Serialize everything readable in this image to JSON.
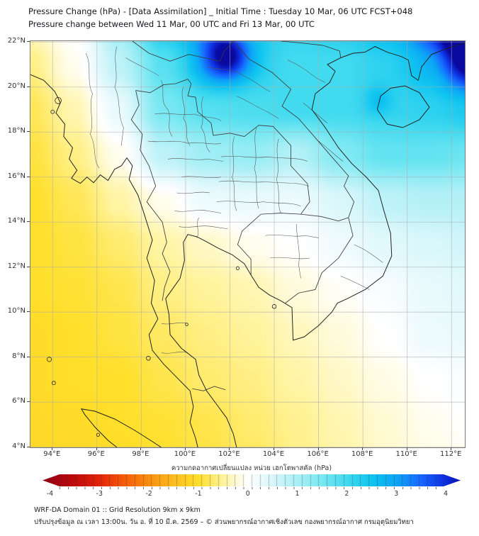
{
  "header": {
    "title_line1": "Pressure Change (hPa) - [Data Assimilation] _ Initial Time : Tuesday 10 Mar, 06 UTC FCST+048",
    "title_line2": "Pressure change between Wed 11 Mar, 00 UTC and Fri 13 Mar, 00 UTC"
  },
  "footer": {
    "line1": "WRF-DA Domain 01 :: Grid Resolution 9km x 9km",
    "line2": "ปรับปรุงข้อมูล ณ เวลา 13:00น. วัน อ. ที่ 10 มี.ค. 2569 – © ส่วนพยากรณ์อากาศเชิงตัวเลข กองพยากรณ์อากาศ กรมอุตุนิยมวิทยา"
  },
  "colorbar": {
    "title": "ความกดอากาศเปลี่ยนแปลง หน่วย เฮกโตพาสคัล (hPa)",
    "ticks": [
      -4,
      -3,
      -2,
      -1,
      0,
      1,
      2,
      3,
      4
    ],
    "range": [
      -4.15,
      4.3
    ]
  },
  "axes": {
    "x_ticks": [
      {
        "lon": 94,
        "label": "94°E"
      },
      {
        "lon": 96,
        "label": "96°E"
      },
      {
        "lon": 98,
        "label": "98°E"
      },
      {
        "lon": 100,
        "label": "100°E"
      },
      {
        "lon": 102,
        "label": "102°E"
      },
      {
        "lon": 104,
        "label": "104°E"
      },
      {
        "lon": 106,
        "label": "106°E"
      },
      {
        "lon": 108,
        "label": "108°E"
      },
      {
        "lon": 110,
        "label": "110°E"
      },
      {
        "lon": 112,
        "label": "112°E"
      }
    ],
    "y_ticks": [
      {
        "lat": 4,
        "label": "4°N"
      },
      {
        "lat": 6,
        "label": "6°N"
      },
      {
        "lat": 8,
        "label": "8°N"
      },
      {
        "lat": 10,
        "label": "10°N"
      },
      {
        "lat": 12,
        "label": "12°N"
      },
      {
        "lat": 14,
        "label": "14°N"
      },
      {
        "lat": 16,
        "label": "16°N"
      },
      {
        "lat": 18,
        "label": "18°N"
      },
      {
        "lat": 20,
        "label": "20°N"
      },
      {
        "lat": 22,
        "label": "22°N"
      }
    ]
  },
  "chart_data": {
    "type": "heatmap",
    "title": "Pressure Change (hPa) - [Data Assimilation] _ Initial Time : Tuesday 10 Mar, 06 UTC FCST+048",
    "subtitle": "Pressure change between Wed 11 Mar, 00 UTC and Fri 13 Mar, 00 UTC",
    "units": "hPa",
    "colorbar_title": "ความกดอากาศเปลี่ยนแปลง หน่วย เฮกโตพาสคัล (hPa)",
    "colorbar_ticks": [
      -4,
      -3,
      -2,
      -1,
      0,
      1,
      2,
      3,
      4
    ],
    "colorbar_range": [
      -4.15,
      4.3
    ],
    "extent": {
      "lon_min": 93.0,
      "lon_max": 112.6,
      "lat_min": 3.99,
      "lat_max": 22.04
    },
    "grid": {
      "lons": [
        93,
        95,
        97,
        99,
        101,
        103,
        105,
        107,
        109,
        111,
        113
      ],
      "lats": [
        23,
        21,
        19,
        17,
        15,
        13,
        11,
        9,
        7,
        5,
        3
      ],
      "values": [
        [
          -0.2,
          0.1,
          1.2,
          2.6,
          3.2,
          2.4,
          2.2,
          2.4,
          2.8,
          3.6,
          4.4
        ],
        [
          -0.6,
          -0.1,
          0.8,
          1.8,
          2.6,
          2.2,
          2.0,
          2.0,
          2.2,
          2.6,
          4.2
        ],
        [
          -0.8,
          -0.4,
          0.3,
          1.5,
          1.8,
          1.9,
          2.0,
          2.0,
          2.1,
          2.2,
          2.4
        ],
        [
          -0.9,
          -0.6,
          -0.1,
          0.8,
          1.1,
          1.2,
          0.9,
          1.4,
          1.7,
          1.7,
          1.6
        ],
        [
          -1.0,
          -0.8,
          -0.45,
          -0.1,
          0.25,
          0.3,
          0.25,
          0.5,
          0.8,
          0.9,
          0.9
        ],
        [
          -1.0,
          -0.9,
          -0.7,
          -0.45,
          -0.3,
          -0.1,
          0.0,
          0.2,
          0.4,
          0.5,
          0.6
        ],
        [
          -1.0,
          -0.95,
          -0.85,
          -0.6,
          -0.5,
          -0.4,
          -0.2,
          -0.05,
          0.1,
          0.3,
          0.4
        ],
        [
          -1.05,
          -1.0,
          -0.9,
          -0.75,
          -0.6,
          -0.5,
          -0.35,
          -0.2,
          0.0,
          0.25,
          0.3
        ],
        [
          -1.05,
          -1.0,
          -1.0,
          -0.85,
          -0.7,
          -0.6,
          -0.45,
          -0.3,
          -0.15,
          0.0,
          0.1
        ],
        [
          -1.1,
          -1.05,
          -1.0,
          -0.95,
          -0.85,
          -0.7,
          -0.55,
          -0.4,
          -0.25,
          -0.1,
          0.0
        ],
        [
          -1.1,
          -1.1,
          -1.05,
          -1.0,
          -0.9,
          -0.8,
          -0.6,
          -0.45,
          -0.3,
          -0.2,
          -0.1
        ]
      ]
    },
    "centers": [
      {
        "lon": 101.9,
        "lat": 21.35,
        "amp": 2.2,
        "sigma": 0.75
      },
      {
        "lon": 112.6,
        "lat": 22.3,
        "amp": 1.6,
        "sigma": 1.1
      },
      {
        "lon": 108.7,
        "lat": 19.4,
        "amp": 0.5,
        "sigma": 0.45
      }
    ],
    "colormap": [
      [
        -4.4,
        "#67000d"
      ],
      [
        -4.0,
        "#9c0013"
      ],
      [
        -3.5,
        "#c00a0a"
      ],
      [
        -3.0,
        "#e32509"
      ],
      [
        -2.5,
        "#f65d08"
      ],
      [
        -2.0,
        "#fb8f10"
      ],
      [
        -1.5,
        "#fdbd20"
      ],
      [
        -1.0,
        "#ffdf2a"
      ],
      [
        -0.5,
        "#fff39b"
      ],
      [
        -0.2,
        "#fffbdd"
      ],
      [
        0.0,
        "#ffffff"
      ],
      [
        0.2,
        "#f0fbfd"
      ],
      [
        0.5,
        "#d9f7fb"
      ],
      [
        1.0,
        "#aaeff6"
      ],
      [
        1.5,
        "#79e8f2"
      ],
      [
        2.0,
        "#42daef"
      ],
      [
        2.5,
        "#10c5f0"
      ],
      [
        3.0,
        "#0ca6f6"
      ],
      [
        3.5,
        "#1768ff"
      ],
      [
        4.0,
        "#0d2ee0"
      ],
      [
        4.4,
        "#0a09a0"
      ]
    ]
  }
}
